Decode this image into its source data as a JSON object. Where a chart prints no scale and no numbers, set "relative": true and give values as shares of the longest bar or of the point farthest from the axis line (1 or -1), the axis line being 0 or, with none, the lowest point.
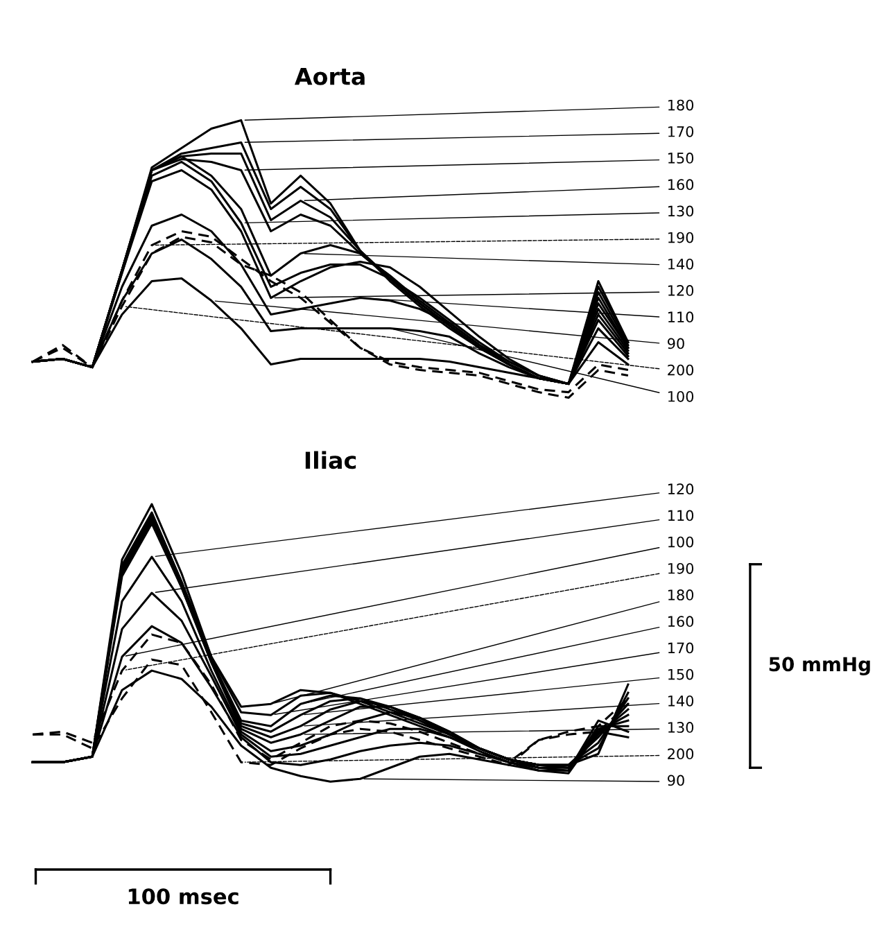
{
  "chart_data": [
    {
      "type": "line",
      "title": "Aorta",
      "relative": true,
      "categories": [
        null,
        null,
        null,
        null,
        null,
        null,
        null,
        null,
        null,
        null,
        null,
        null,
        null,
        null,
        null,
        null,
        null,
        null,
        null,
        null,
        null
      ],
      "series": [
        {
          "name": "90",
          "color": "#000000",
          "line_style": "solid",
          "values": [
            0.13,
            0.14,
            0.11,
            0.3,
            0.42,
            0.43,
            0.35,
            0.25,
            0.12,
            0.14,
            0.14,
            0.14,
            0.14,
            0.14,
            0.13,
            0.11,
            0.09,
            0.07,
            0.05,
            0.2,
            0.12
          ]
        },
        {
          "name": "100",
          "color": "#000000",
          "line_style": "solid",
          "values": [
            0.13,
            0.14,
            0.11,
            0.35,
            0.52,
            0.57,
            0.5,
            0.4,
            0.24,
            0.25,
            0.25,
            0.25,
            0.25,
            0.24,
            0.22,
            0.16,
            0.11,
            0.07,
            0.05,
            0.25,
            0.14
          ]
        },
        {
          "name": "110",
          "color": "#000000",
          "line_style": "solid",
          "values": [
            0.13,
            0.14,
            0.11,
            0.4,
            0.62,
            0.66,
            0.6,
            0.48,
            0.3,
            0.32,
            0.34,
            0.36,
            0.35,
            0.32,
            0.27,
            0.19,
            0.13,
            0.08,
            0.05,
            0.28,
            0.15
          ]
        },
        {
          "name": "120",
          "color": "#000000",
          "line_style": "solid",
          "values": [
            0.13,
            0.14,
            0.11,
            0.45,
            0.78,
            0.82,
            0.75,
            0.6,
            0.36,
            0.42,
            0.47,
            0.49,
            0.47,
            0.4,
            0.31,
            0.22,
            0.14,
            0.08,
            0.05,
            0.3,
            0.16
          ]
        },
        {
          "name": "130",
          "color": "#000000",
          "line_style": "solid",
          "values": [
            0.13,
            0.14,
            0.11,
            0.45,
            0.8,
            0.85,
            0.78,
            0.63,
            0.4,
            0.45,
            0.48,
            0.48,
            0.43,
            0.36,
            0.28,
            0.2,
            0.13,
            0.08,
            0.05,
            0.32,
            0.17
          ]
        },
        {
          "name": "140",
          "color": "#000000",
          "line_style": "solid",
          "values": [
            0.13,
            0.14,
            0.11,
            0.46,
            0.82,
            0.87,
            0.8,
            0.68,
            0.44,
            0.52,
            0.55,
            0.52,
            0.44,
            0.35,
            0.27,
            0.19,
            0.12,
            0.07,
            0.05,
            0.34,
            0.18
          ]
        },
        {
          "name": "150",
          "color": "#000000",
          "line_style": "solid",
          "values": [
            0.13,
            0.14,
            0.11,
            0.46,
            0.82,
            0.86,
            0.85,
            0.82,
            0.6,
            0.66,
            0.62,
            0.52,
            0.43,
            0.34,
            0.26,
            0.18,
            0.12,
            0.07,
            0.05,
            0.36,
            0.18
          ]
        },
        {
          "name": "160",
          "color": "#000000",
          "line_style": "solid",
          "values": [
            0.13,
            0.14,
            0.11,
            0.46,
            0.82,
            0.87,
            0.88,
            0.88,
            0.64,
            0.71,
            0.65,
            0.53,
            0.43,
            0.34,
            0.26,
            0.18,
            0.12,
            0.07,
            0.05,
            0.38,
            0.19
          ]
        },
        {
          "name": "170",
          "color": "#000000",
          "line_style": "solid",
          "values": [
            0.13,
            0.14,
            0.11,
            0.46,
            0.82,
            0.88,
            0.9,
            0.92,
            0.68,
            0.76,
            0.68,
            0.53,
            0.43,
            0.34,
            0.26,
            0.18,
            0.12,
            0.07,
            0.05,
            0.4,
            0.2
          ]
        },
        {
          "name": "180",
          "color": "#000000",
          "line_style": "solid",
          "values": [
            0.13,
            0.14,
            0.11,
            0.46,
            0.83,
            0.9,
            0.97,
            1.0,
            0.7,
            0.8,
            0.7,
            0.53,
            0.42,
            0.33,
            0.25,
            0.18,
            0.12,
            0.07,
            0.05,
            0.42,
            0.2
          ]
        },
        {
          "name": "190",
          "color": "#000000",
          "line_style": "dashed",
          "values": [
            0.13,
            0.18,
            0.11,
            0.35,
            0.55,
            0.6,
            0.58,
            0.5,
            0.42,
            0.36,
            0.27,
            0.18,
            0.13,
            0.11,
            0.1,
            0.09,
            0.06,
            0.03,
            0.02,
            0.12,
            0.1
          ]
        },
        {
          "name": "200",
          "color": "#000000",
          "line_style": "dashed",
          "values": [
            0.13,
            0.19,
            0.11,
            0.33,
            0.52,
            0.58,
            0.56,
            0.48,
            0.44,
            0.38,
            0.28,
            0.18,
            0.12,
            0.1,
            0.09,
            0.08,
            0.05,
            0.02,
            0.0,
            0.1,
            0.08
          ]
        }
      ]
    },
    {
      "type": "line",
      "title": "Iliac",
      "relative": true,
      "categories": [
        null,
        null,
        null,
        null,
        null,
        null,
        null,
        null,
        null,
        null,
        null,
        null,
        null,
        null,
        null,
        null,
        null,
        null,
        null,
        null,
        null
      ],
      "annotations": [
        "50 mmHg",
        "100 msec"
      ],
      "series": [
        {
          "name": "90",
          "color": "#000000",
          "line_style": "solid",
          "values": [
            0.07,
            0.07,
            0.09,
            0.33,
            0.4,
            0.37,
            0.27,
            0.13,
            0.05,
            0.02,
            0.0,
            0.01,
            0.05,
            0.09,
            0.1,
            0.08,
            0.06,
            0.04,
            0.03,
            0.18,
            0.16
          ]
        },
        {
          "name": "100",
          "color": "#000000",
          "line_style": "solid",
          "values": [
            0.07,
            0.07,
            0.09,
            0.45,
            0.56,
            0.5,
            0.34,
            0.16,
            0.07,
            0.06,
            0.08,
            0.11,
            0.13,
            0.14,
            0.13,
            0.1,
            0.07,
            0.04,
            0.04,
            0.22,
            0.18
          ]
        },
        {
          "name": "110",
          "color": "#000000",
          "line_style": "solid",
          "values": [
            0.07,
            0.07,
            0.09,
            0.55,
            0.68,
            0.58,
            0.38,
            0.17,
            0.09,
            0.1,
            0.13,
            0.16,
            0.19,
            0.19,
            0.16,
            0.11,
            0.07,
            0.05,
            0.04,
            0.2,
            0.2
          ]
        },
        {
          "name": "120",
          "color": "#000000",
          "line_style": "solid",
          "values": [
            0.07,
            0.07,
            0.09,
            0.65,
            0.81,
            0.65,
            0.4,
            0.18,
            0.11,
            0.13,
            0.17,
            0.22,
            0.25,
            0.23,
            0.18,
            0.12,
            0.08,
            0.05,
            0.05,
            0.19,
            0.22
          ]
        },
        {
          "name": "130",
          "color": "#000000",
          "line_style": "solid",
          "values": [
            0.07,
            0.07,
            0.09,
            0.74,
            0.93,
            0.7,
            0.43,
            0.19,
            0.14,
            0.17,
            0.22,
            0.27,
            0.27,
            0.23,
            0.18,
            0.12,
            0.08,
            0.06,
            0.05,
            0.18,
            0.24
          ]
        },
        {
          "name": "140",
          "color": "#000000",
          "line_style": "solid",
          "values": [
            0.07,
            0.07,
            0.09,
            0.75,
            0.94,
            0.7,
            0.43,
            0.2,
            0.16,
            0.2,
            0.26,
            0.29,
            0.27,
            0.23,
            0.17,
            0.12,
            0.08,
            0.06,
            0.05,
            0.17,
            0.26
          ]
        },
        {
          "name": "150",
          "color": "#000000",
          "line_style": "solid",
          "values": [
            0.07,
            0.07,
            0.09,
            0.76,
            0.95,
            0.71,
            0.44,
            0.21,
            0.18,
            0.24,
            0.29,
            0.3,
            0.27,
            0.22,
            0.17,
            0.12,
            0.08,
            0.06,
            0.06,
            0.16,
            0.28
          ]
        },
        {
          "name": "160",
          "color": "#000000",
          "line_style": "solid",
          "values": [
            0.07,
            0.07,
            0.09,
            0.77,
            0.96,
            0.72,
            0.44,
            0.22,
            0.2,
            0.28,
            0.31,
            0.3,
            0.26,
            0.22,
            0.17,
            0.12,
            0.08,
            0.06,
            0.06,
            0.14,
            0.3
          ]
        },
        {
          "name": "170",
          "color": "#000000",
          "line_style": "solid",
          "values": [
            0.07,
            0.07,
            0.09,
            0.78,
            0.97,
            0.72,
            0.45,
            0.25,
            0.24,
            0.31,
            0.32,
            0.29,
            0.25,
            0.21,
            0.17,
            0.12,
            0.08,
            0.06,
            0.06,
            0.12,
            0.32
          ]
        },
        {
          "name": "180",
          "color": "#000000",
          "line_style": "solid",
          "values": [
            0.07,
            0.07,
            0.09,
            0.8,
            1.0,
            0.75,
            0.45,
            0.27,
            0.28,
            0.33,
            0.32,
            0.28,
            0.24,
            0.2,
            0.16,
            0.12,
            0.08,
            0.06,
            0.06,
            0.1,
            0.35
          ]
        },
        {
          "name": "190",
          "color": "#000000",
          "line_style": "dashed",
          "values": [
            0.17,
            0.18,
            0.14,
            0.4,
            0.53,
            0.5,
            0.35,
            0.15,
            0.08,
            0.14,
            0.2,
            0.22,
            0.21,
            0.18,
            0.14,
            0.1,
            0.07,
            0.15,
            0.18,
            0.2,
            0.3
          ]
        },
        {
          "name": "200",
          "color": "#000000",
          "line_style": "dashed",
          "values": [
            0.17,
            0.17,
            0.12,
            0.3,
            0.44,
            0.42,
            0.25,
            0.07,
            0.06,
            0.12,
            0.17,
            0.19,
            0.18,
            0.15,
            0.12,
            0.09,
            0.06,
            0.15,
            0.17,
            0.18,
            0.28
          ]
        }
      ]
    }
  ]
}
